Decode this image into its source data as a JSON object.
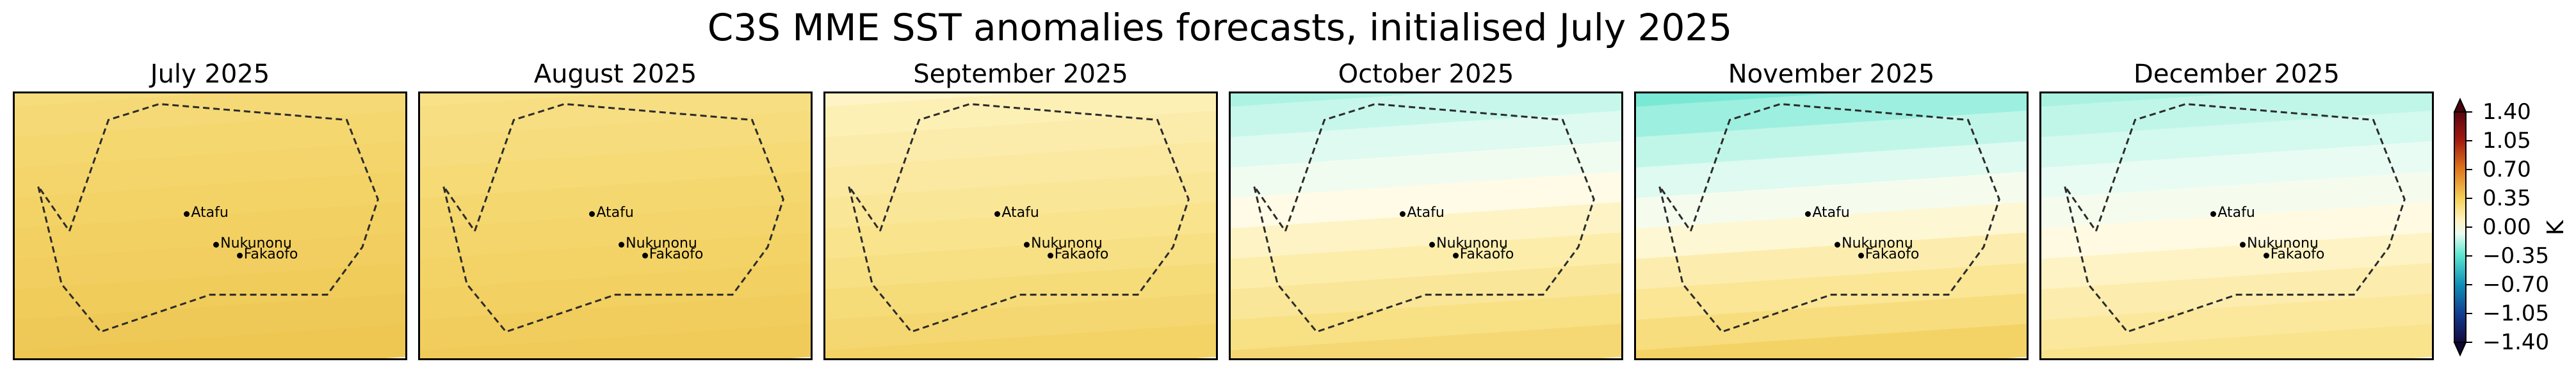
{
  "figure": {
    "title": "C3S MME SST anomalies forecasts, initialised July 2025"
  },
  "map_data": {
    "variable": "SST anomaly",
    "units": "K",
    "region_outline": "dashed",
    "places": [
      "Atafu",
      "Nukunonu",
      "Fakaofo"
    ],
    "panels": [
      {
        "title": "July 2025",
        "anomaly_top": 0.35,
        "anomaly_bottom": 0.55
      },
      {
        "title": "August 2025",
        "anomaly_top": 0.3,
        "anomaly_bottom": 0.52
      },
      {
        "title": "September 2025",
        "anomaly_top": 0.08,
        "anomaly_bottom": 0.45
      },
      {
        "title": "October 2025",
        "anomaly_top": -0.3,
        "anomaly_bottom": 0.4
      },
      {
        "title": "November 2025",
        "anomaly_top": -0.45,
        "anomaly_bottom": 0.45
      },
      {
        "title": "December 2025",
        "anomaly_top": -0.3,
        "anomaly_bottom": 0.3
      }
    ],
    "colorbar": {
      "label": "K",
      "min": -1.4,
      "max": 1.4,
      "ticks": [
        "1.40",
        "1.05",
        "0.70",
        "0.35",
        "0.00",
        "−0.35",
        "−0.70",
        "−1.05",
        "−1.40"
      ],
      "extend": "both"
    }
  }
}
